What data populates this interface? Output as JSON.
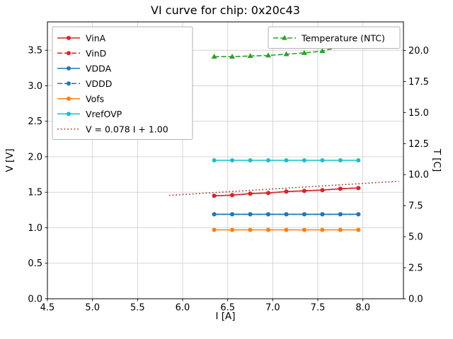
{
  "chart_data": {
    "type": "line",
    "title": "VI curve for chip: 0x20c43",
    "xlabel": "I [A]",
    "ylabel_left": "V [V]",
    "ylabel_right": "T [C]",
    "xlim": [
      4.5,
      8.45
    ],
    "ylim_left": [
      0.0,
      3.9
    ],
    "ylim_right": [
      0.0,
      22.3
    ],
    "xticks": [
      4.5,
      5.0,
      5.5,
      6.0,
      6.5,
      7.0,
      7.5,
      8.0
    ],
    "yticks_left": [
      0.0,
      0.5,
      1.0,
      1.5,
      2.0,
      2.5,
      3.0,
      3.5
    ],
    "yticks_right": [
      0.0,
      2.5,
      5.0,
      7.5,
      10.0,
      12.5,
      15.0,
      17.5,
      20.0
    ],
    "grid": true,
    "legend_left_position": "upper left",
    "legend_right_position": "upper right",
    "x": [
      6.35,
      6.55,
      6.75,
      6.95,
      7.15,
      7.35,
      7.55,
      7.75,
      7.95
    ],
    "series": [
      {
        "name": "VinA",
        "axis": "left",
        "color": "#d62728",
        "dash": "solid",
        "marker": "circle",
        "values": [
          1.45,
          1.46,
          1.48,
          1.49,
          1.51,
          1.52,
          1.53,
          1.55,
          1.56
        ]
      },
      {
        "name": "VinD",
        "axis": "left",
        "color": "#d62728",
        "dash": "dashed",
        "marker": "circle",
        "values": [
          1.45,
          1.46,
          1.48,
          1.49,
          1.51,
          1.52,
          1.53,
          1.55,
          1.56
        ]
      },
      {
        "name": "VDDA",
        "axis": "left",
        "color": "#1f77b4",
        "dash": "solid",
        "marker": "circle",
        "values": [
          1.19,
          1.19,
          1.19,
          1.19,
          1.19,
          1.19,
          1.19,
          1.19,
          1.19
        ]
      },
      {
        "name": "VDDD",
        "axis": "left",
        "color": "#1f77b4",
        "dash": "dashed",
        "marker": "circle",
        "values": [
          1.19,
          1.19,
          1.19,
          1.19,
          1.19,
          1.19,
          1.19,
          1.19,
          1.19
        ]
      },
      {
        "name": "Vofs",
        "axis": "left",
        "color": "#ff7f0e",
        "dash": "solid",
        "marker": "circle",
        "values": [
          0.97,
          0.97,
          0.97,
          0.97,
          0.97,
          0.97,
          0.97,
          0.97,
          0.97
        ]
      },
      {
        "name": "VrefOVP",
        "axis": "left",
        "color": "#17becf",
        "dash": "solid",
        "marker": "circle",
        "values": [
          1.95,
          1.95,
          1.95,
          1.95,
          1.95,
          1.95,
          1.95,
          1.95,
          1.95
        ]
      },
      {
        "name": "Temperature (NTC)",
        "axis": "right",
        "color": "#2ca02c",
        "dash": "dashed",
        "marker": "triangle",
        "values": [
          19.5,
          19.5,
          19.55,
          19.6,
          19.7,
          19.8,
          19.95,
          20.3,
          20.75
        ]
      }
    ],
    "fit_line": {
      "label": "V = 0.078 I + 1.00",
      "slope": 0.078,
      "intercept": 1.0,
      "color": "#a1443a",
      "dash": "dotted",
      "x_range": [
        5.85,
        8.4
      ]
    }
  }
}
